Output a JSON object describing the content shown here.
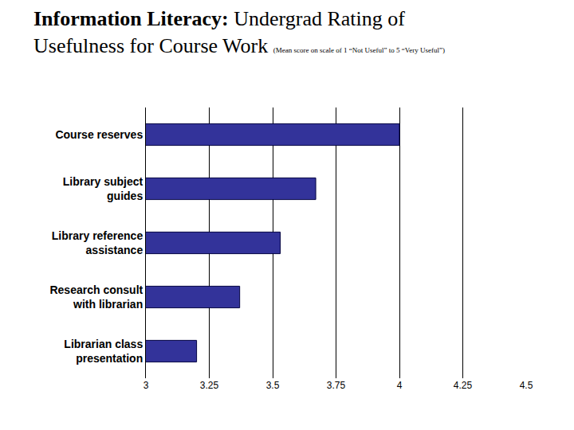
{
  "chart_data": {
    "type": "bar",
    "orientation": "horizontal",
    "title": "Information Literacy: Undergrad Rating of Usefulness for Course Work",
    "subtitle": "(Mean score on scale of 1 “Not Useful” to 5 “Very Useful”)",
    "categories": [
      "Course reserves",
      "Library subject guides",
      "Library reference assistance",
      "Research consult with librarian",
      "Librarian class presentation"
    ],
    "values": [
      4.0,
      3.67,
      3.53,
      3.37,
      3.2
    ],
    "color": "#33339a",
    "xlim": [
      3,
      4.5
    ],
    "xticks": [
      3,
      3.25,
      3.5,
      3.75,
      4,
      4.25,
      4.5
    ],
    "grid": true
  }
}
